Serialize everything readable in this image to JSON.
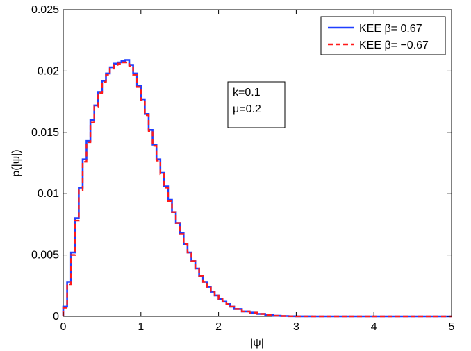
{
  "chart_data": {
    "type": "line",
    "xlabel": "|ψ|",
    "ylabel": "p(|ψ|)",
    "xlim": [
      0,
      5
    ],
    "ylim": [
      0,
      0.025
    ],
    "xticks": [
      0,
      1,
      2,
      3,
      4,
      5
    ],
    "xtick_labels": [
      "0",
      "1",
      "2",
      "3",
      "4",
      "5"
    ],
    "yticks": [
      0,
      0.005,
      0.01,
      0.015,
      0.02,
      0.025
    ],
    "ytick_labels": [
      "0",
      "0.005",
      "0.01",
      "0.015",
      "0.02",
      "0.025"
    ],
    "grid": false,
    "legend_position": "top-right",
    "annotation": [
      "k=0.1",
      "μ=0.2"
    ],
    "step": true,
    "x": [
      0.02,
      0.05,
      0.1,
      0.15,
      0.2,
      0.25,
      0.3,
      0.35,
      0.4,
      0.45,
      0.5,
      0.55,
      0.6,
      0.65,
      0.7,
      0.75,
      0.8,
      0.85,
      0.9,
      0.95,
      1.0,
      1.05,
      1.1,
      1.15,
      1.2,
      1.25,
      1.3,
      1.35,
      1.4,
      1.45,
      1.5,
      1.55,
      1.6,
      1.65,
      1.7,
      1.75,
      1.8,
      1.85,
      1.9,
      1.95,
      2.0,
      2.05,
      2.1,
      2.15,
      2.2,
      2.3,
      2.4,
      2.5,
      2.6,
      2.7,
      2.8,
      2.9,
      3.0,
      3.2,
      3.5,
      4.0,
      4.5,
      5.0
    ],
    "series": [
      {
        "name": "KEE β= 0.67",
        "color": "#1f3fff",
        "dash": "solid",
        "values": [
          0.0008,
          0.0028,
          0.0052,
          0.008,
          0.0105,
          0.0128,
          0.0143,
          0.016,
          0.0172,
          0.0183,
          0.0192,
          0.0198,
          0.0203,
          0.0206,
          0.0207,
          0.0208,
          0.0209,
          0.0205,
          0.0198,
          0.0188,
          0.0177,
          0.0165,
          0.0152,
          0.014,
          0.0128,
          0.0117,
          0.0106,
          0.0095,
          0.0085,
          0.0076,
          0.0068,
          0.0059,
          0.0052,
          0.0045,
          0.0039,
          0.0033,
          0.0028,
          0.0024,
          0.002,
          0.0017,
          0.0014,
          0.0012,
          0.001,
          0.0008,
          0.0006,
          0.0004,
          0.0003,
          0.0002,
          0.0001,
          5e-05,
          3e-05,
          1e-05,
          5e-06,
          0,
          0,
          0,
          0,
          0
        ]
      },
      {
        "name": "KEE β= −0.67",
        "color": "#ff1a1a",
        "dash": "dashed",
        "values": [
          0.0007,
          0.0026,
          0.005,
          0.0078,
          0.0103,
          0.0126,
          0.0142,
          0.0158,
          0.0171,
          0.0182,
          0.0191,
          0.0197,
          0.0202,
          0.0205,
          0.0206,
          0.0207,
          0.0207,
          0.0204,
          0.0197,
          0.0187,
          0.0176,
          0.0164,
          0.0151,
          0.0139,
          0.0127,
          0.0116,
          0.0105,
          0.0094,
          0.0085,
          0.0076,
          0.0067,
          0.0059,
          0.0052,
          0.0045,
          0.0039,
          0.0033,
          0.0028,
          0.0024,
          0.002,
          0.0017,
          0.0014,
          0.0012,
          0.001,
          0.0008,
          0.0006,
          0.0004,
          0.0003,
          0.0002,
          0.0001,
          5e-05,
          3e-05,
          1e-05,
          5e-06,
          0,
          0,
          0,
          0,
          0
        ]
      }
    ]
  }
}
